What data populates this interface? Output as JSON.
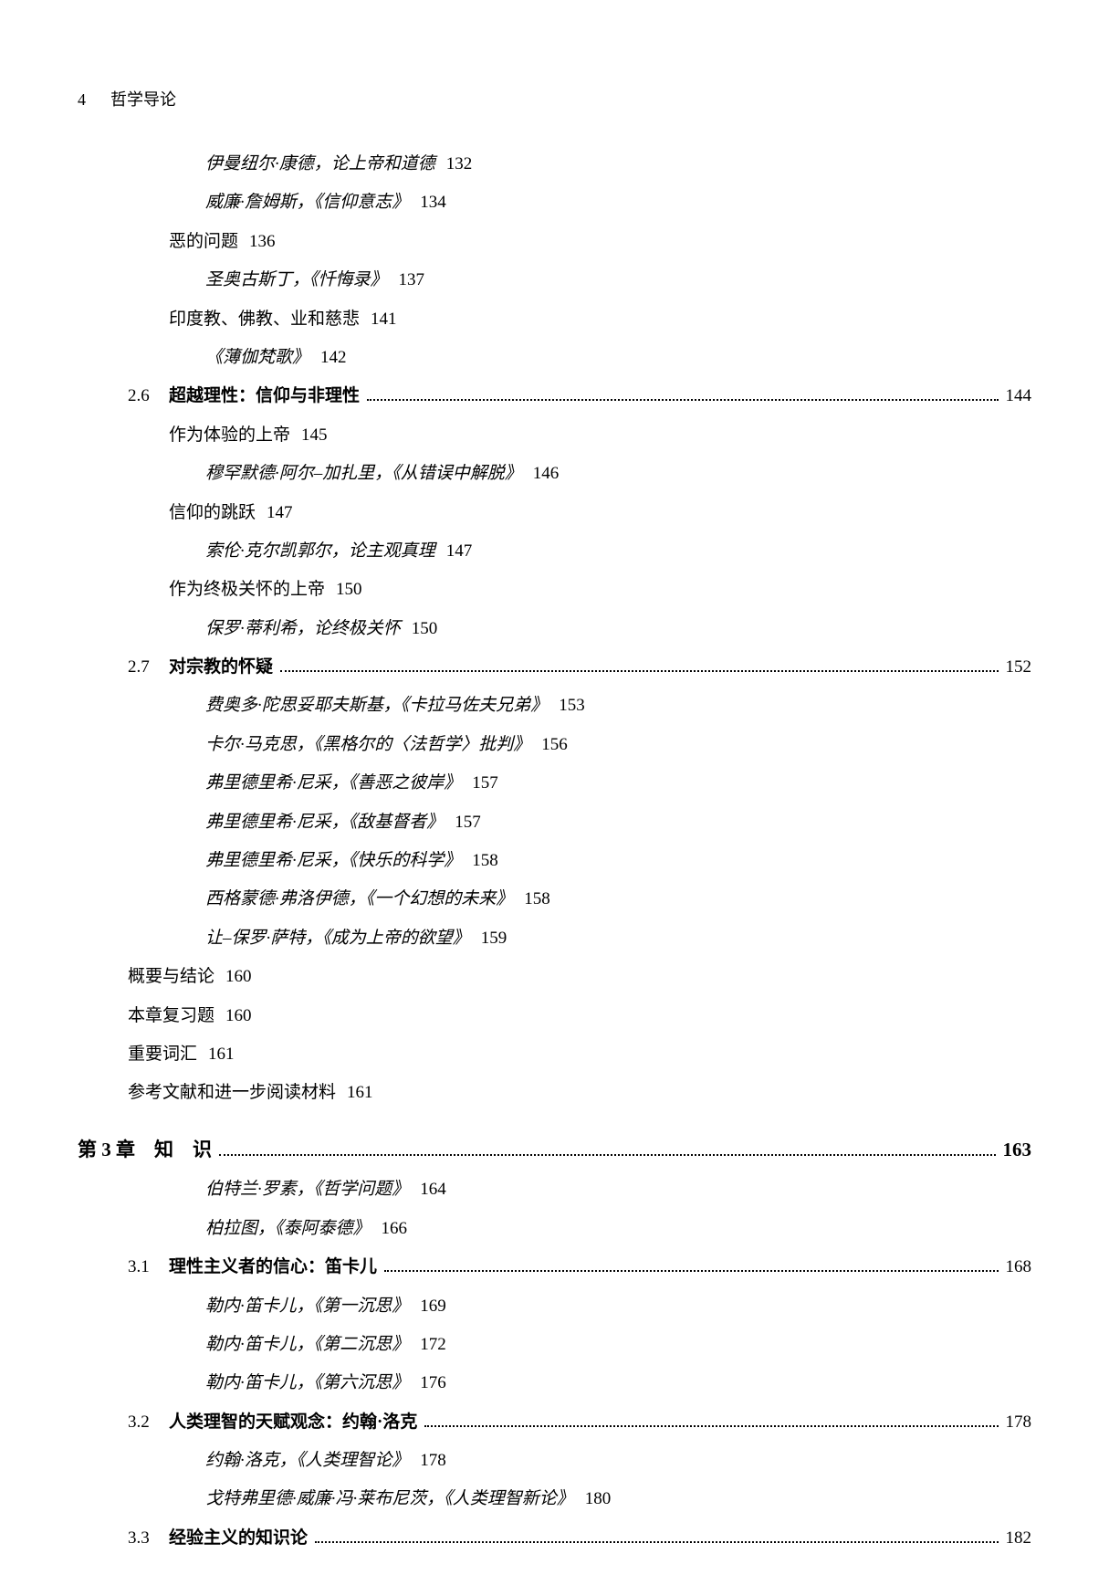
{
  "header": {
    "page_num": "4",
    "book_title": "哲学导论"
  },
  "entries": [
    {
      "type": "sub",
      "indent": 2,
      "author": "伊曼纽尔·康德",
      "title": "，论上帝和道德",
      "page": "132"
    },
    {
      "type": "sub",
      "indent": 2,
      "author": "威廉·詹姆斯",
      "title": "，《信仰意志》",
      "page": "134"
    },
    {
      "type": "plain",
      "indent": 1,
      "title": "恶的问题",
      "page": "136"
    },
    {
      "type": "sub",
      "indent": 2,
      "author": "圣奥古斯丁",
      "title": "，《忏悔录》",
      "page": "137"
    },
    {
      "type": "plain",
      "indent": 1,
      "title": "印度教、佛教、业和慈悲",
      "page": "141"
    },
    {
      "type": "sub",
      "indent": 2,
      "author": "",
      "title": "《薄伽梵歌》",
      "page": "142"
    },
    {
      "type": "section",
      "indent": 0,
      "num": "2.6",
      "title": "超越理性：信仰与非理性",
      "page": "144"
    },
    {
      "type": "plain",
      "indent": 1,
      "title": "作为体验的上帝",
      "page": "145"
    },
    {
      "type": "sub",
      "indent": 2,
      "author": "穆罕默德·阿尔–加扎里",
      "title": "，《从错误中解脱》",
      "page": "146"
    },
    {
      "type": "plain",
      "indent": 1,
      "title": "信仰的跳跃",
      "page": "147"
    },
    {
      "type": "sub",
      "indent": 2,
      "author": "索伦·克尔凯郭尔",
      "title": "，论主观真理",
      "page": "147"
    },
    {
      "type": "plain",
      "indent": 1,
      "title": "作为终极关怀的上帝",
      "page": "150"
    },
    {
      "type": "sub",
      "indent": 2,
      "author": "保罗·蒂利希",
      "title": "，论终极关怀",
      "page": "150"
    },
    {
      "type": "section",
      "indent": 0,
      "num": "2.7",
      "title": "对宗教的怀疑",
      "page": "152"
    },
    {
      "type": "sub",
      "indent": 2,
      "author": "费奥多·陀思妥耶夫斯基",
      "title": "，《卡拉马佐夫兄弟》",
      "page": "153"
    },
    {
      "type": "sub",
      "indent": 2,
      "author": "卡尔·马克思",
      "title": "，《黑格尔的〈法哲学〉批判》",
      "page": "156"
    },
    {
      "type": "sub",
      "indent": 2,
      "author": "弗里德里希·尼采",
      "title": "，《善恶之彼岸》",
      "page": "157"
    },
    {
      "type": "sub",
      "indent": 2,
      "author": "弗里德里希·尼采",
      "title": "，《敌基督者》",
      "page": "157"
    },
    {
      "type": "sub",
      "indent": 2,
      "author": "弗里德里希·尼采",
      "title": "，《快乐的科学》",
      "page": "158"
    },
    {
      "type": "sub",
      "indent": 2,
      "author": "西格蒙德·弗洛伊德",
      "title": "，《一个幻想的未来》",
      "page": "158"
    },
    {
      "type": "sub",
      "indent": 2,
      "author": "让–保罗·萨特",
      "title": "，《成为上帝的欲望》",
      "page": "159"
    },
    {
      "type": "plain",
      "indent": 0,
      "title": "概要与结论",
      "page": "160"
    },
    {
      "type": "plain",
      "indent": 0,
      "title": "本章复习题",
      "page": "160"
    },
    {
      "type": "plain",
      "indent": 0,
      "title": "重要词汇",
      "page": "161"
    },
    {
      "type": "plain",
      "indent": 0,
      "title": "参考文献和进一步阅读材料",
      "page": "161"
    },
    {
      "type": "chapter",
      "num": "第 3 章",
      "title": "知　识",
      "page": "163"
    },
    {
      "type": "sub",
      "indent": 2,
      "author": "伯特兰·罗素",
      "title": "，《哲学问题》",
      "page": "164"
    },
    {
      "type": "sub",
      "indent": 2,
      "author": "柏拉图",
      "title": "，《泰阿泰德》",
      "page": "166"
    },
    {
      "type": "section",
      "indent": 0,
      "num": "3.1",
      "title": "理性主义者的信心：笛卡儿",
      "page": "168"
    },
    {
      "type": "sub",
      "indent": 2,
      "author": "勒内·笛卡儿",
      "title": "，《第一沉思》",
      "page": "169"
    },
    {
      "type": "sub",
      "indent": 2,
      "author": "勒内·笛卡儿",
      "title": "，《第二沉思》",
      "page": "172"
    },
    {
      "type": "sub",
      "indent": 2,
      "author": "勒内·笛卡儿",
      "title": "，《第六沉思》",
      "page": "176"
    },
    {
      "type": "section",
      "indent": 0,
      "num": "3.2",
      "title": "人类理智的天赋观念：约翰·洛克",
      "page": "178"
    },
    {
      "type": "sub",
      "indent": 2,
      "author": "约翰·洛克",
      "title": "，《人类理智论》",
      "page": "178"
    },
    {
      "type": "sub",
      "indent": 2,
      "author": "戈特弗里德·威廉·冯·莱布尼茨",
      "title": "，《人类理智新论》",
      "page": "180"
    },
    {
      "type": "section",
      "indent": 0,
      "num": "3.3",
      "title": "经验主义的知识论",
      "page": "182"
    }
  ]
}
